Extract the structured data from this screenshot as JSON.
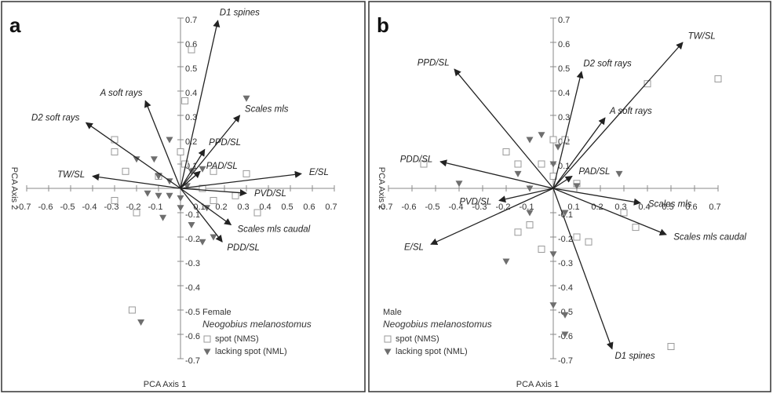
{
  "chart_data": [
    {
      "type": "scatter",
      "panel_label": "a",
      "xlabel": "PCA Axis 1",
      "ylabel": "PCA Axis 2",
      "legend_title": "Female",
      "legend_subtitle": "Neogobius melanostomus",
      "legend": "lower-right",
      "xlim": [
        -0.7,
        0.7
      ],
      "ylim": [
        -0.7,
        0.7
      ],
      "xticks": [
        -0.7,
        -0.6,
        -0.5,
        -0.4,
        -0.3,
        -0.2,
        -0.1,
        0.1,
        0.2,
        0.3,
        0.4,
        0.5,
        0.6,
        0.7
      ],
      "yticks": [
        -0.7,
        -0.6,
        -0.5,
        -0.4,
        -0.3,
        -0.2,
        -0.1,
        0.1,
        0.2,
        0.3,
        0.4,
        0.5,
        0.6,
        0.7
      ],
      "series": [
        {
          "name": "spot (NMS)",
          "color": "#9a9a9a",
          "marker": "square",
          "x": [
            0.05,
            0.02,
            -0.3,
            -0.3,
            -0.25,
            0.0,
            0.02,
            0.15,
            0.3,
            0.25,
            0.35,
            0.15,
            -0.2,
            -0.3,
            -0.22,
            0.1,
            -0.1
          ],
          "y": [
            0.57,
            0.36,
            0.2,
            0.15,
            0.07,
            0.15,
            0.1,
            0.07,
            0.06,
            -0.03,
            -0.1,
            -0.05,
            -0.1,
            -0.05,
            -0.5,
            0.0,
            0.05
          ]
        },
        {
          "name": "lacking spot (NML)",
          "color": "#6e6e6e",
          "marker": "triangle",
          "x": [
            0.3,
            -0.05,
            -0.12,
            -0.2,
            -0.1,
            -0.05,
            0.05,
            0.1,
            -0.15,
            -0.05,
            0.0,
            -0.08,
            0.05,
            0.15,
            0.1,
            -0.18,
            0.0,
            -0.1,
            0.03,
            0.12
          ],
          "y": [
            0.37,
            0.2,
            0.12,
            0.12,
            0.05,
            0.03,
            0.07,
            0.08,
            -0.02,
            -0.03,
            -0.08,
            -0.12,
            -0.15,
            -0.2,
            -0.22,
            -0.55,
            -0.04,
            -0.03,
            0.01,
            -0.08
          ]
        }
      ],
      "vectors": [
        {
          "label": "D1 spines",
          "x": 0.17,
          "y": 0.69
        },
        {
          "label": "A soft rays",
          "x": -0.16,
          "y": 0.36
        },
        {
          "label": "D2 soft rays",
          "x": -0.43,
          "y": 0.27
        },
        {
          "label": "Scales mls",
          "x": 0.27,
          "y": 0.3
        },
        {
          "label": "PPD/SL",
          "x": 0.11,
          "y": 0.16
        },
        {
          "label": "TW/SL",
          "x": -0.4,
          "y": 0.05
        },
        {
          "label": "PAD/SL",
          "x": 0.09,
          "y": 0.07
        },
        {
          "label": "E/SL",
          "x": 0.55,
          "y": 0.06
        },
        {
          "label": "PVD/SL",
          "x": 0.3,
          "y": -0.02
        },
        {
          "label": "Scales mls caudal",
          "x": 0.23,
          "y": -0.15
        },
        {
          "label": "PDD/SL",
          "x": 0.19,
          "y": -0.22
        }
      ]
    },
    {
      "type": "scatter",
      "panel_label": "b",
      "xlabel": "PCA Axis 1",
      "ylabel": "PCA Axis 2",
      "legend_title": "Male",
      "legend_subtitle": "Neogobius melanostomus",
      "legend": "lower-left",
      "xlim": [
        -0.7,
        0.7
      ],
      "ylim": [
        -0.7,
        0.7
      ],
      "xticks": [
        -0.7,
        -0.6,
        -0.5,
        -0.4,
        -0.3,
        -0.2,
        -0.1,
        0.1,
        0.2,
        0.3,
        0.4,
        0.5,
        0.6,
        0.7
      ],
      "yticks": [
        -0.7,
        -0.6,
        -0.5,
        -0.4,
        -0.3,
        -0.2,
        -0.1,
        0.1,
        0.2,
        0.3,
        0.4,
        0.5,
        0.6,
        0.7
      ],
      "series": [
        {
          "name": "spot (NMS)",
          "color": "#9a9a9a",
          "marker": "square",
          "x": [
            0.4,
            0.7,
            -0.55,
            0.0,
            0.05,
            -0.15,
            -0.05,
            0.0,
            0.1,
            0.3,
            0.35,
            0.1,
            0.15,
            -0.15,
            -0.1,
            -0.05,
            0.5,
            -0.2
          ],
          "y": [
            0.43,
            0.45,
            0.1,
            0.2,
            0.2,
            0.1,
            0.1,
            0.05,
            0.02,
            -0.1,
            -0.16,
            -0.2,
            -0.22,
            -0.18,
            -0.15,
            -0.25,
            -0.65,
            0.15
          ]
        },
        {
          "name": "lacking spot (NML)",
          "color": "#6e6e6e",
          "marker": "triangle",
          "x": [
            -0.1,
            -0.05,
            0.02,
            0.28,
            -0.4,
            -0.15,
            0.0,
            -0.1,
            0.05,
            -0.2,
            0.0,
            0.0,
            0.05,
            0.05,
            -0.1,
            0.1
          ],
          "y": [
            0.2,
            0.22,
            0.17,
            0.06,
            0.02,
            0.06,
            0.1,
            -0.1,
            -0.1,
            -0.3,
            -0.27,
            -0.48,
            -0.52,
            -0.6,
            0.0,
            0.01
          ]
        }
      ],
      "vectors": [
        {
          "label": "PPD/SL",
          "x": -0.42,
          "y": 0.49
        },
        {
          "label": "D2 soft rays",
          "x": 0.12,
          "y": 0.48
        },
        {
          "label": "A soft rays",
          "x": 0.22,
          "y": 0.29
        },
        {
          "label": "TW/SL",
          "x": 0.55,
          "y": 0.6
        },
        {
          "label": "PDD/SL",
          "x": -0.48,
          "y": 0.11
        },
        {
          "label": "PAD/SL",
          "x": 0.08,
          "y": 0.05
        },
        {
          "label": "PVD/SL",
          "x": -0.23,
          "y": -0.05
        },
        {
          "label": "E/SL",
          "x": -0.52,
          "y": -0.23
        },
        {
          "label": "Scales mls",
          "x": 0.37,
          "y": -0.06
        },
        {
          "label": "Scales mls caudal",
          "x": 0.48,
          "y": -0.19
        },
        {
          "label": "D1 spines",
          "x": 0.25,
          "y": -0.66
        }
      ]
    }
  ]
}
